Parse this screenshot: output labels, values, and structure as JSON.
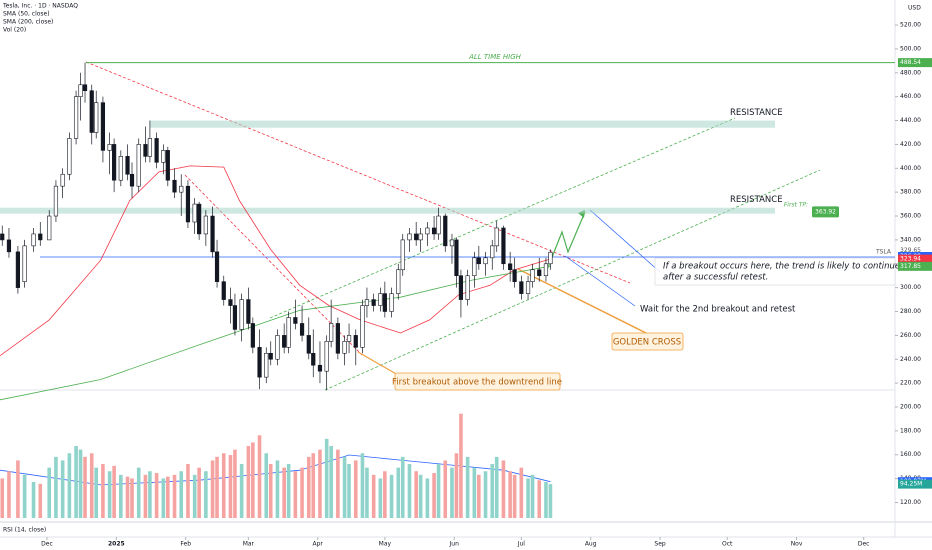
{
  "chart_data": {
    "type": "candlestick",
    "title": "Tesla, Inc. · 1D · NASDAQ",
    "currency": "USD",
    "x": [
      -20,
      -17,
      -13,
      -10,
      -6,
      -3,
      1,
      4,
      7,
      10,
      13,
      15,
      17,
      20,
      22,
      25,
      28,
      30,
      33,
      36,
      38,
      41,
      44,
      46,
      49,
      52,
      54,
      57,
      60,
      63,
      66,
      68,
      71,
      74,
      76,
      79,
      82,
      84,
      87,
      90,
      92,
      95,
      98,
      100,
      103,
      106,
      108,
      111,
      114,
      117,
      119,
      122,
      125,
      127,
      130,
      133,
      135,
      138,
      141,
      143,
      146,
      149,
      151,
      154,
      157,
      159,
      162,
      165,
      167,
      170,
      173,
      175,
      178,
      181,
      183,
      185,
      188,
      191,
      193,
      196,
      199,
      201,
      204,
      207,
      209,
      212,
      215,
      217,
      220,
      223,
      225
    ],
    "open": [
      345,
      340,
      330,
      305,
      335,
      345,
      340,
      360,
      385,
      395,
      425,
      460,
      470,
      465,
      430,
      455,
      415,
      420,
      390,
      410,
      395,
      385,
      420,
      410,
      425,
      405,
      415,
      390,
      380,
      385,
      355,
      370,
      345,
      360,
      330,
      305,
      290,
      285,
      265,
      290,
      270,
      250,
      225,
      245,
      240,
      260,
      250,
      275,
      270,
      260,
      245,
      235,
      230,
      255,
      270,
      245,
      255,
      260,
      250,
      285,
      290,
      285,
      295,
      280,
      295,
      315,
      340,
      345,
      340,
      345,
      350,
      345,
      360,
      335,
      340,
      310,
      290,
      310,
      325,
      320,
      325,
      335,
      350,
      320,
      315,
      305,
      295,
      305,
      315,
      310,
      320
    ],
    "high": [
      352,
      350,
      335,
      340,
      350,
      355,
      365,
      390,
      400,
      430,
      465,
      480,
      488.54,
      470,
      465,
      460,
      430,
      425,
      415,
      420,
      405,
      425,
      435,
      440,
      430,
      420,
      418,
      400,
      395,
      390,
      375,
      372,
      365,
      368,
      340,
      310,
      300,
      295,
      295,
      300,
      275,
      265,
      250,
      255,
      265,
      270,
      280,
      290,
      285,
      275,
      265,
      255,
      260,
      290,
      275,
      260,
      270,
      265,
      290,
      300,
      295,
      300,
      305,
      300,
      320,
      345,
      350,
      355,
      350,
      355,
      360,
      367,
      362,
      345,
      342,
      315,
      315,
      330,
      335,
      330,
      340,
      356,
      352,
      330,
      325,
      310,
      310,
      320,
      325,
      325,
      332
    ],
    "low": [
      335,
      325,
      295,
      300,
      330,
      335,
      340,
      355,
      375,
      390,
      420,
      440,
      455,
      420,
      425,
      405,
      395,
      380,
      385,
      390,
      375,
      380,
      405,
      405,
      400,
      395,
      385,
      375,
      360,
      350,
      345,
      340,
      335,
      325,
      300,
      285,
      270,
      260,
      255,
      265,
      245,
      215,
      220,
      235,
      235,
      245,
      245,
      265,
      255,
      240,
      225,
      220,
      214,
      250,
      240,
      235,
      245,
      235,
      245,
      275,
      280,
      280,
      275,
      275,
      290,
      310,
      330,
      335,
      330,
      335,
      340,
      340,
      330,
      320,
      300,
      275,
      285,
      300,
      315,
      310,
      315,
      330,
      315,
      305,
      300,
      290,
      290,
      300,
      305,
      305,
      315
    ],
    "close": [
      340,
      330,
      300,
      335,
      345,
      340,
      360,
      385,
      395,
      425,
      460,
      470,
      465,
      430,
      455,
      415,
      420,
      390,
      410,
      395,
      385,
      420,
      410,
      425,
      405,
      415,
      390,
      380,
      385,
      355,
      370,
      345,
      360,
      330,
      305,
      290,
      285,
      265,
      290,
      270,
      250,
      225,
      245,
      240,
      260,
      250,
      275,
      270,
      260,
      245,
      235,
      230,
      255,
      270,
      245,
      255,
      260,
      250,
      285,
      290,
      285,
      295,
      280,
      295,
      315,
      340,
      345,
      340,
      345,
      350,
      345,
      360,
      335,
      340,
      310,
      290,
      310,
      325,
      320,
      325,
      335,
      350,
      320,
      315,
      305,
      295,
      305,
      315,
      310,
      320,
      329.65
    ],
    "volume": [
      110,
      130,
      160,
      120,
      100,
      95,
      140,
      170,
      160,
      180,
      200,
      190,
      170,
      180,
      140,
      150,
      130,
      145,
      120,
      115,
      110,
      140,
      120,
      130,
      125,
      110,
      115,
      120,
      130,
      150,
      120,
      140,
      130,
      160,
      170,
      180,
      175,
      190,
      150,
      200,
      210,
      230,
      180,
      150,
      160,
      140,
      150,
      130,
      140,
      170,
      180,
      190,
      220,
      200,
      190,
      170,
      150,
      160,
      180,
      140,
      120,
      110,
      130,
      120,
      140,
      170,
      150,
      130,
      120,
      110,
      125,
      150,
      160,
      140,
      180,
      290,
      170,
      140,
      120,
      130,
      150,
      170,
      160,
      130,
      120,
      140,
      110,
      120,
      105,
      100,
      94.25
    ],
    "up_color": "#ffffff",
    "down_color": "#131722",
    "volume_up_color": "#8fd3ca",
    "volume_down_color": "#f5a3a1",
    "xlim": [
      -21,
      379
    ],
    "xticks": [
      {
        "value": 0,
        "label": "Dec"
      },
      {
        "value": 31,
        "label": "2025"
      },
      {
        "value": 62,
        "label": "Feb"
      },
      {
        "value": 90,
        "label": "Mar"
      },
      {
        "value": 121,
        "label": "Apr"
      },
      {
        "value": 151,
        "label": "May"
      },
      {
        "value": 182,
        "label": "Jun"
      },
      {
        "value": 212,
        "label": "Jul"
      },
      {
        "value": 243,
        "label": "Aug"
      },
      {
        "value": 274,
        "label": "Sep"
      },
      {
        "value": 304,
        "label": "Oct"
      },
      {
        "value": 335,
        "label": "Nov"
      },
      {
        "value": 365,
        "label": "Dec"
      }
    ],
    "ylim": [
      107,
      541
    ],
    "yticks": [
      {
        "value": 120,
        "label": "120.00"
      },
      {
        "value": 140,
        "label": "140.00"
      },
      {
        "value": 160,
        "label": "160.00"
      },
      {
        "value": 180,
        "label": "180.00"
      },
      {
        "value": 200,
        "label": "200.00"
      },
      {
        "value": 220,
        "label": "220.00"
      },
      {
        "value": 240,
        "label": "240.00"
      },
      {
        "value": 260,
        "label": "260.00"
      },
      {
        "value": 280,
        "label": "280.00"
      },
      {
        "value": 300,
        "label": "300.00"
      },
      {
        "value": 320,
        "label": "320.00"
      },
      {
        "value": 340,
        "label": "340.00"
      },
      {
        "value": 360,
        "label": "360.00"
      },
      {
        "value": 380,
        "label": "380.00"
      },
      {
        "value": 400,
        "label": "400.00"
      },
      {
        "value": 420,
        "label": "420.00"
      },
      {
        "value": 440,
        "label": "440.00"
      },
      {
        "value": 460,
        "label": "460.00"
      },
      {
        "value": 480,
        "label": "480.00"
      },
      {
        "value": 500,
        "label": "500.00"
      },
      {
        "value": 520,
        "label": "520.00"
      }
    ],
    "y2lim": [
      0,
      1440
    ],
    "grid": false,
    "lines": [
      {
        "name": "SMA (50, close)",
        "color": "#f23645",
        "x": [
          -21,
          1,
          24,
          37,
          50,
          64,
          79,
          86,
          100,
          113,
          126,
          140,
          158,
          171,
          184,
          198,
          209,
          225
        ],
        "values": [
          243,
          273,
          323,
          373,
          397,
          402,
          401,
          373,
          332,
          302,
          285,
          273,
          262,
          273,
          294,
          302,
          315,
          324
        ]
      },
      {
        "name": "SMA (200, close)",
        "color": "#4caf50",
        "x": [
          -21,
          24,
          68,
          113,
          158,
          189,
          225
        ],
        "values": [
          206,
          223,
          252,
          281,
          292,
          306,
          318
        ]
      },
      {
        "name": "Vol (20)",
        "color": "#2962ff",
        "axis": "y2",
        "x": [
          -21,
          24,
          68,
          113,
          135,
          158,
          181,
          204,
          225
        ],
        "values": [
          133,
          92,
          105,
          133,
          175,
          161,
          147,
          133,
          101
        ]
      }
    ],
    "price_tags": [
      {
        "value": 488.54,
        "color": "#4caf50"
      },
      {
        "value": 326.09,
        "color": "#2962ff"
      },
      {
        "value": 323.94,
        "color": "#f23645"
      },
      {
        "value": 317.85,
        "color": "#4caf50"
      }
    ],
    "last_price": 329.65,
    "volume_tags": [
      {
        "value": 100.87,
        "label": "100.87M",
        "color": "#2962ff"
      },
      {
        "value": 94.25,
        "label": "94.25M",
        "color": "#26a69a"
      }
    ],
    "zones": [
      {
        "label": "RESISTANCE",
        "from": 434,
        "to": 440
      },
      {
        "label": "RESISTANCE",
        "from": 362,
        "to": 367
      }
    ],
    "annotations": {
      "ath": "ALL TIME HIGH",
      "first_tp": "First TP:",
      "first_tp_value": 363.92,
      "ticker": "TSLA",
      "breakout_1": "If a breakout occurs here, the trend is likely to continue",
      "breakout_2": "after a successful retest.",
      "retest": "Wait for the 2nd breakout and retest",
      "golden_cross": "GOLDEN CROSS",
      "first_breakout": "First breakout above the downtrend line",
      "rsi": "RSI (14, close)"
    }
  }
}
